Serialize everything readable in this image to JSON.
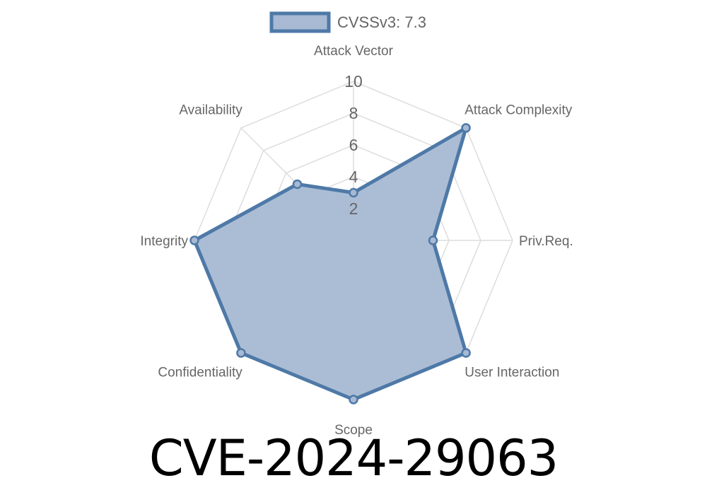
{
  "title": "CVE-2024-29063",
  "colors": {
    "series_stroke": "#4e79a7",
    "series_fill": "#a7b9d3",
    "grid": "#dddddd",
    "text": "#666666"
  },
  "chart_data": {
    "type": "radar",
    "axes": [
      "Attack Vector",
      "Attack Complexity",
      "Priv.Req.",
      "User Interaction",
      "Scope",
      "Confidentiality",
      "Integrity",
      "Availability"
    ],
    "r_ticks": [
      "2",
      "4",
      "6",
      "8",
      "10"
    ],
    "r_range": [
      0,
      10
    ],
    "legend_position": "top",
    "series": [
      {
        "name": "CVSSv3: 7.3",
        "values": [
          3,
          10,
          5,
          10,
          10,
          10,
          10,
          5
        ]
      }
    ]
  }
}
